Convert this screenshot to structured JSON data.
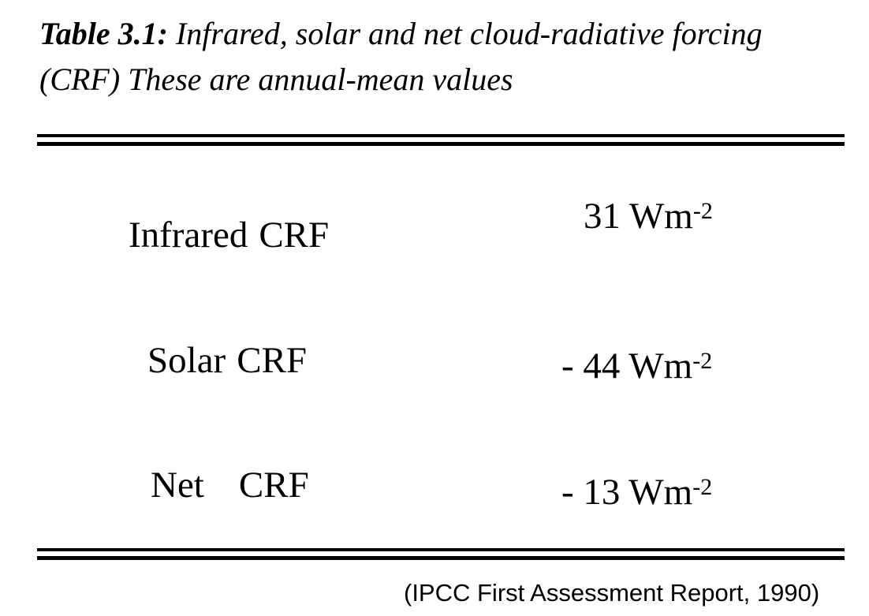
{
  "caption": {
    "label": "Table 3.1:",
    "line1_text": "Infrared, solar and net cloud-radiative forcing",
    "line2_text": "(CRF)  These are annual-mean values"
  },
  "table": {
    "rows": [
      {
        "term": "Infrared",
        "abbr": "CRF",
        "value": "31 Wm",
        "exponent": "-2"
      },
      {
        "term": "Solar",
        "abbr": "CRF",
        "value": "- 44 Wm",
        "exponent": "-2"
      },
      {
        "term": "Net",
        "abbr": "CRF",
        "value": "- 13 Wm",
        "exponent": "-2"
      }
    ]
  },
  "source": "(IPCC First Assessment Report, 1990)"
}
